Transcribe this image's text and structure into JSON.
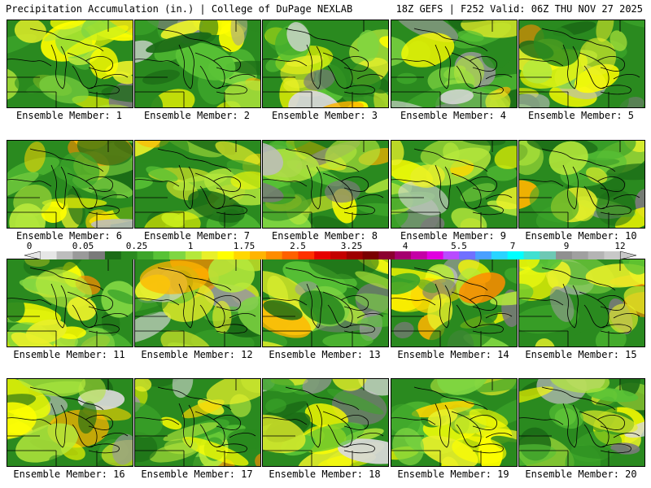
{
  "header": {
    "left": "Precipitation Accumulation (in.) | College of DuPage NEXLAB",
    "right": "18Z GEFS | F252 Valid: 06Z THU NOV 27 2025"
  },
  "colorbar": {
    "tick_labels": [
      "0",
      "0.05",
      "0.25",
      "1",
      "1.75",
      "2.5",
      "3.25",
      "4",
      "5.5",
      "7",
      "9",
      "12"
    ],
    "colors": [
      "#e6e6e6",
      "#bdbdbd",
      "#9a9a9a",
      "#7a7a7a",
      "#1b6b16",
      "#2a8a1f",
      "#3da52a",
      "#58c236",
      "#7fd642",
      "#b5e83c",
      "#e8f02a",
      "#ffff00",
      "#ffd700",
      "#ffb400",
      "#ff8c00",
      "#ff6000",
      "#ff3000",
      "#e60000",
      "#c40000",
      "#9e0000",
      "#7a0000",
      "#8b0030",
      "#a5006e",
      "#c400a6",
      "#e000e0",
      "#b84cff",
      "#7070ff",
      "#4aa0ff",
      "#2ad4ff",
      "#00ffff",
      "#40e0d0",
      "#6ec8b4",
      "#909090",
      "#a0a0a0",
      "#b4b4b4",
      "#c8c8c8"
    ]
  },
  "members": [
    {
      "label": "Ensemble Member: 1"
    },
    {
      "label": "Ensemble Member: 2"
    },
    {
      "label": "Ensemble Member: 3"
    },
    {
      "label": "Ensemble Member: 4"
    },
    {
      "label": "Ensemble Member: 5"
    },
    {
      "label": "Ensemble Member: 6"
    },
    {
      "label": "Ensemble Member: 7"
    },
    {
      "label": "Ensemble Member: 8"
    },
    {
      "label": "Ensemble Member: 9"
    },
    {
      "label": "Ensemble Member: 10"
    },
    {
      "label": "Ensemble Member: 11"
    },
    {
      "label": "Ensemble Member: 12"
    },
    {
      "label": "Ensemble Member: 13"
    },
    {
      "label": "Ensemble Member: 14"
    },
    {
      "label": "Ensemble Member: 15"
    },
    {
      "label": "Ensemble Member: 16"
    },
    {
      "label": "Ensemble Member: 17"
    },
    {
      "label": "Ensemble Member: 18"
    },
    {
      "label": "Ensemble Member: 19"
    },
    {
      "label": "Ensemble Member: 20"
    }
  ]
}
